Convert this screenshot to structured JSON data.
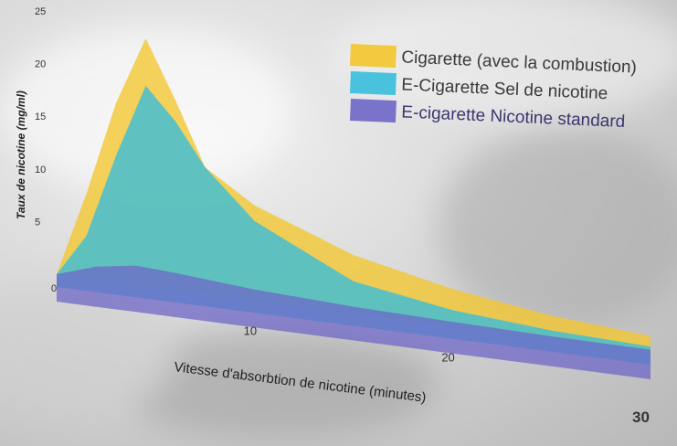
{
  "chart_data": {
    "type": "area",
    "title": "",
    "xlabel": "Vitesse d'absorbtion de nicotine (minutes)",
    "ylabel": "Taux de nicotine (mg/ml)",
    "xlim": [
      0,
      30
    ],
    "ylim": [
      0,
      25
    ],
    "x_ticks": [
      "0",
      "10",
      "20",
      "30"
    ],
    "y_ticks": [
      "5",
      "10",
      "15",
      "20",
      "25"
    ],
    "legend_position": "top-right",
    "grid": false,
    "series": [
      {
        "name": "Cigarette (avec la combustion)",
        "color": "#f2c62e",
        "points": [
          [
            0,
            0
          ],
          [
            1.5,
            8
          ],
          [
            3,
            17
          ],
          [
            4.5,
            23.5
          ],
          [
            6,
            18
          ],
          [
            7.5,
            12
          ],
          [
            10,
            9
          ],
          [
            15,
            5.5
          ],
          [
            20,
            3.5
          ],
          [
            25,
            2.2
          ],
          [
            30,
            1.5
          ]
        ]
      },
      {
        "name": "E-Cigarette Sel de nicotine",
        "color": "#36bedc",
        "points": [
          [
            0,
            0
          ],
          [
            1.5,
            4
          ],
          [
            3,
            12
          ],
          [
            4.5,
            19
          ],
          [
            6,
            16
          ],
          [
            7.5,
            12
          ],
          [
            10,
            7.5
          ],
          [
            15,
            3
          ],
          [
            20,
            1.5
          ],
          [
            25,
            0.8
          ],
          [
            30,
            0.5
          ]
        ]
      },
      {
        "name": "E-cigarette Nicotine standard",
        "color": "#6d67c6",
        "points": [
          [
            0,
            0
          ],
          [
            2,
            1.2
          ],
          [
            4,
            1.8
          ],
          [
            6,
            1.6
          ],
          [
            10,
            1
          ],
          [
            15,
            0.6
          ],
          [
            20,
            0.4
          ],
          [
            25,
            0.25
          ],
          [
            30,
            0.2
          ]
        ]
      }
    ]
  }
}
